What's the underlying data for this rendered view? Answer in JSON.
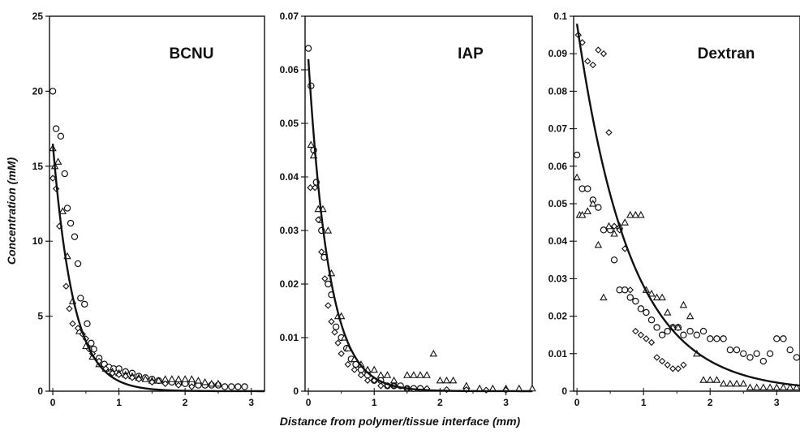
{
  "figure": {
    "ylabel": "Concentration (mM)",
    "xlabel": "Distance from polymer/tissue interface (mm)"
  },
  "chart_data": [
    {
      "type": "scatter",
      "title": "BCNU",
      "ylim": [
        0,
        25
      ],
      "xlim": [
        -0.05,
        3.2
      ],
      "yticks": [
        0,
        5,
        10,
        15,
        20,
        25
      ],
      "ytick_labels": [
        "0",
        "5",
        "10",
        "15",
        "20",
        "25"
      ],
      "xticks": [
        0,
        1,
        2,
        3
      ],
      "xtick_labels": [
        "0",
        "1",
        "2",
        "3"
      ],
      "fit_curve": {
        "model": "exponential",
        "y0": 16.5,
        "decay_per_mm": 3.2
      },
      "series": [
        {
          "marker": "circle",
          "x": [
            0,
            0.05,
            0.12,
            0.18,
            0.22,
            0.27,
            0.33,
            0.38,
            0.42,
            0.48,
            0.52,
            0.58,
            0.62,
            0.7,
            0.78,
            0.85,
            0.92,
            1.0,
            1.1,
            1.2,
            1.3,
            1.4,
            1.5,
            1.6,
            1.7,
            1.8,
            1.9,
            2.0,
            2.1,
            2.2,
            2.3,
            2.4,
            2.5,
            2.6,
            2.7,
            2.8,
            2.9
          ],
          "y": [
            20,
            17.5,
            17.0,
            14.5,
            12.2,
            11.2,
            10.3,
            8.5,
            6.2,
            5.8,
            4.5,
            3.2,
            2.8,
            2.2,
            1.8,
            1.6,
            1.5,
            1.5,
            1.3,
            1.2,
            1.0,
            0.9,
            0.8,
            0.7,
            0.6,
            0.6,
            0.5,
            0.5,
            0.5,
            0.4,
            0.4,
            0.4,
            0.4,
            0.3,
            0.3,
            0.3,
            0.3
          ]
        },
        {
          "marker": "triangle",
          "x": [
            0,
            0.03,
            0.08,
            0.15,
            0.22,
            0.3,
            0.4,
            0.5,
            0.6,
            0.7,
            0.8,
            0.9,
            1.0,
            1.1,
            1.2,
            1.3,
            1.4,
            1.5,
            1.6,
            1.7,
            1.8,
            1.9,
            2.0,
            2.1,
            2.2,
            2.3,
            2.4,
            2.5
          ],
          "y": [
            16.2,
            15.0,
            15.3,
            12.0,
            9.0,
            6.0,
            4.0,
            3.0,
            2.3,
            1.8,
            1.5,
            1.3,
            1.2,
            1.1,
            1.0,
            0.9,
            0.8,
            0.7,
            0.7,
            0.8,
            0.8,
            0.8,
            0.8,
            0.8,
            0.7,
            0.6,
            0.5,
            0.5
          ]
        },
        {
          "marker": "diamond",
          "x": [
            0,
            0.05,
            0.1,
            0.2,
            0.25,
            0.3,
            0.38,
            0.45,
            0.5,
            0.55,
            0.6,
            0.7,
            0.8,
            0.9,
            1.0,
            1.1,
            1.2,
            1.3,
            1.5,
            1.7,
            1.9,
            2.1
          ],
          "y": [
            14.2,
            13.5,
            11.0,
            7.0,
            5.5,
            4.5,
            4.2,
            3.8,
            3.5,
            2.8,
            2.5,
            2.0,
            1.5,
            1.2,
            1.1,
            1.0,
            0.9,
            0.8,
            0.6,
            0.5,
            0.4,
            0.3
          ]
        }
      ]
    },
    {
      "type": "scatter",
      "title": "IAP",
      "ylim": [
        0,
        0.07
      ],
      "xlim": [
        -0.05,
        3.4
      ],
      "yticks": [
        0,
        0.01,
        0.02,
        0.03,
        0.04,
        0.05,
        0.06,
        0.07
      ],
      "ytick_labels": [
        "0",
        "0.01",
        "0.02",
        "0.03",
        "0.04",
        "0.05",
        "0.06",
        "0.07"
      ],
      "xticks": [
        0,
        1,
        2,
        3
      ],
      "xtick_labels": [
        "0",
        "1",
        "2",
        "3"
      ],
      "fit_curve": {
        "model": "exponential",
        "y0": 0.062,
        "decay_per_mm": 3.2
      },
      "series": [
        {
          "marker": "circle",
          "x": [
            0,
            0.04,
            0.08,
            0.12,
            0.17,
            0.2,
            0.24,
            0.3,
            0.35,
            0.42,
            0.5,
            0.58,
            0.65,
            0.72,
            0.8,
            0.9,
            1.0,
            1.1,
            1.2,
            1.3,
            1.4,
            1.5,
            1.6,
            1.7
          ],
          "y": [
            0.064,
            0.057,
            0.045,
            0.039,
            0.032,
            0.03,
            0.025,
            0.02,
            0.018,
            0.012,
            0.01,
            0.008,
            0.006,
            0.005,
            0.004,
            0.003,
            0.002,
            0.002,
            0.001,
            0.001,
            0.001,
            0.0005,
            0.0005,
            0.0005
          ]
        },
        {
          "marker": "triangle",
          "x": [
            0.04,
            0.08,
            0.15,
            0.22,
            0.3,
            0.35,
            0.45,
            0.5,
            0.55,
            0.6,
            0.7,
            0.8,
            0.9,
            1.0,
            1.1,
            1.2,
            1.3,
            1.5,
            1.6,
            1.7,
            1.8,
            1.9,
            2.0,
            2.1,
            2.2,
            2.4,
            2.6,
            2.8,
            3.0,
            3.2,
            3.4
          ],
          "y": [
            0.046,
            0.044,
            0.034,
            0.034,
            0.03,
            0.022,
            0.014,
            0.014,
            0.01,
            0.008,
            0.006,
            0.005,
            0.004,
            0.004,
            0.003,
            0.003,
            0.002,
            0.003,
            0.003,
            0.003,
            0.003,
            0.007,
            0.002,
            0.002,
            0.002,
            0.001,
            0.0005,
            0.0005,
            0.0005,
            0.0005,
            0.0005
          ]
        },
        {
          "marker": "diamond",
          "x": [
            0.03,
            0.1,
            0.15,
            0.2,
            0.25,
            0.3,
            0.35,
            0.4,
            0.45,
            0.5,
            0.6,
            0.7,
            0.8,
            0.9,
            1.0,
            1.1,
            1.2,
            1.3,
            1.5,
            1.8,
            2.1,
            2.4,
            2.7,
            3.0
          ],
          "y": [
            0.038,
            0.038,
            0.032,
            0.026,
            0.021,
            0.016,
            0.013,
            0.011,
            0.009,
            0.007,
            0.005,
            0.004,
            0.003,
            0.002,
            0.002,
            0.001,
            0.001,
            0.001,
            0.0005,
            0.0005,
            0.0003,
            0.0003,
            0.0002,
            0.0002
          ]
        }
      ]
    },
    {
      "type": "scatter",
      "title": "Dextran",
      "ylim": [
        0,
        0.1
      ],
      "xlim": [
        -0.05,
        3.35
      ],
      "yticks": [
        0,
        0.01,
        0.02,
        0.03,
        0.04,
        0.05,
        0.06,
        0.07,
        0.08,
        0.09,
        0.1
      ],
      "ytick_labels": [
        "0",
        "0.01",
        "0.02",
        "0.03",
        "0.04",
        "0.05",
        "0.06",
        "0.07",
        "0.08",
        "0.09",
        "0.1"
      ],
      "xticks": [
        0,
        1,
        2,
        3
      ],
      "xtick_labels": [
        "0",
        "1",
        "2",
        "3"
      ],
      "fit_curve": {
        "model": "exponential",
        "y0": 0.098,
        "decay_per_mm": 1.25
      },
      "series": [
        {
          "marker": "circle",
          "x": [
            0,
            0.08,
            0.16,
            0.24,
            0.32,
            0.4,
            0.5,
            0.56,
            0.64,
            0.72,
            0.8,
            0.88,
            0.96,
            1.04,
            1.12,
            1.2,
            1.28,
            1.36,
            1.44,
            1.52,
            1.6,
            1.7,
            1.8,
            1.9,
            2.0,
            2.1,
            2.2,
            2.3,
            2.4,
            2.5,
            2.6,
            2.7,
            2.8,
            2.9,
            3.0,
            3.1,
            3.2,
            3.3
          ],
          "y": [
            0.063,
            0.054,
            0.054,
            0.051,
            0.049,
            0.043,
            0.043,
            0.035,
            0.027,
            0.027,
            0.025,
            0.024,
            0.022,
            0.021,
            0.019,
            0.017,
            0.015,
            0.016,
            0.017,
            0.017,
            0.015,
            0.016,
            0.015,
            0.016,
            0.014,
            0.014,
            0.014,
            0.011,
            0.011,
            0.01,
            0.009,
            0.01,
            0.008,
            0.01,
            0.014,
            0.014,
            0.011,
            0.009
          ]
        },
        {
          "marker": "triangle",
          "x": [
            0,
            0.04,
            0.08,
            0.16,
            0.24,
            0.32,
            0.4,
            0.48,
            0.56,
            0.64,
            0.72,
            0.8,
            0.88,
            0.96,
            1.04,
            1.12,
            1.2,
            1.28,
            1.36,
            1.44,
            1.52,
            1.6,
            1.7,
            1.8,
            1.9,
            2.0,
            2.1,
            2.2,
            2.3,
            2.4,
            2.5,
            2.6,
            2.7,
            2.8,
            2.9,
            3.0,
            3.1,
            3.2,
            3.3
          ],
          "y": [
            0.057,
            0.047,
            0.047,
            0.048,
            0.05,
            0.039,
            0.025,
            0.044,
            0.042,
            0.044,
            0.045,
            0.047,
            0.047,
            0.047,
            0.027,
            0.026,
            0.025,
            0.025,
            0.021,
            0.017,
            0.017,
            0.023,
            0.02,
            0.01,
            0.003,
            0.003,
            0.003,
            0.002,
            0.002,
            0.002,
            0.002,
            0.001,
            0.001,
            0.001,
            0.001,
            0.001,
            0.001,
            0.001,
            0.001
          ]
        },
        {
          "marker": "diamond",
          "x": [
            0.02,
            0.08,
            0.16,
            0.24,
            0.32,
            0.4,
            0.48,
            0.56,
            0.64,
            0.72,
            0.8,
            0.88,
            0.96,
            1.04,
            1.12,
            1.2,
            1.28,
            1.36,
            1.44,
            1.52,
            1.6
          ],
          "y": [
            0.095,
            0.093,
            0.088,
            0.087,
            0.091,
            0.09,
            0.069,
            0.044,
            0.043,
            0.038,
            0.027,
            0.016,
            0.015,
            0.014,
            0.013,
            0.009,
            0.008,
            0.007,
            0.006,
            0.006,
            0.007
          ]
        }
      ]
    }
  ]
}
